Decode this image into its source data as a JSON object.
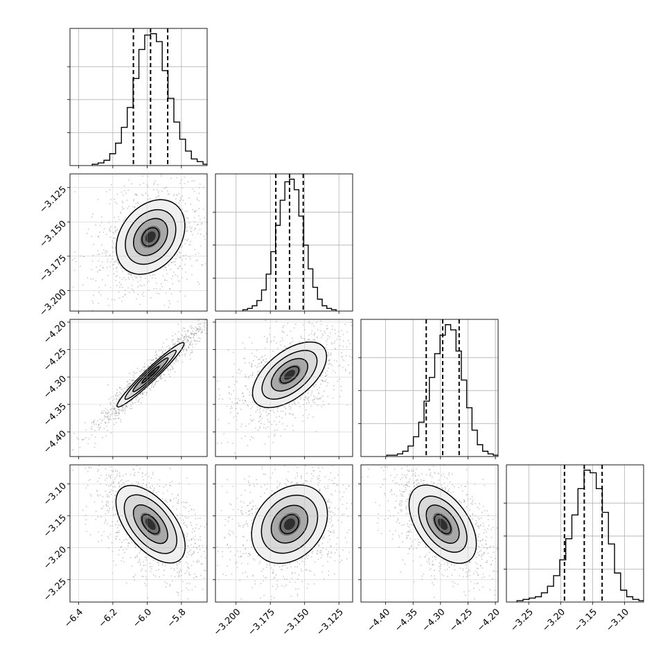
{
  "chart_data": {
    "type": "corner",
    "title": "",
    "parameters": [
      {
        "range": [
          -6.45,
          -5.65
        ],
        "ticks": [
          -6.4,
          -6.2,
          -6.0,
          -5.8
        ],
        "tick_labels": [
          "−6.4",
          "−6.2",
          "−6.0",
          "−5.8"
        ],
        "quantiles": [
          -6.08,
          -5.98,
          -5.88
        ]
      },
      {
        "range": [
          -3.215,
          -3.115
        ],
        "ticks": [
          -3.2,
          -3.175,
          -3.15,
          -3.125
        ],
        "tick_labels": [
          "−3.200",
          "−3.175",
          "−3.150",
          "−3.125"
        ],
        "quantiles": [
          -3.171,
          -3.161,
          -3.151
        ]
      },
      {
        "range": [
          -4.445,
          -4.195
        ],
        "ticks": [
          -4.4,
          -4.35,
          -4.3,
          -4.25,
          -4.2
        ],
        "tick_labels": [
          "−4.40",
          "−4.35",
          "−4.30",
          "−4.25",
          "−4.20"
        ],
        "quantiles": [
          -4.326,
          -4.296,
          -4.266
        ]
      },
      {
        "range": [
          -3.285,
          -3.07
        ],
        "ticks": [
          -3.25,
          -3.2,
          -3.15,
          -3.1
        ],
        "tick_labels": [
          "−3.25",
          "−3.20",
          "−3.15",
          "−3.10"
        ],
        "quantiles": [
          -3.194,
          -3.163,
          -3.135
        ]
      }
    ],
    "histograms": [
      [
        1,
        2,
        4,
        9,
        17,
        29,
        44,
        66,
        88,
        99,
        100,
        94,
        72,
        51,
        33,
        20,
        11,
        5,
        3,
        1
      ],
      [
        1,
        2,
        4,
        8,
        16,
        28,
        45,
        65,
        84,
        98,
        100,
        92,
        72,
        50,
        32,
        18,
        9,
        4,
        2,
        1
      ],
      [
        1,
        1,
        2,
        4,
        8,
        15,
        26,
        42,
        60,
        78,
        92,
        100,
        96,
        80,
        58,
        37,
        20,
        9,
        4,
        2,
        1
      ],
      [
        1,
        2,
        3,
        4,
        7,
        12,
        20,
        32,
        48,
        66,
        86,
        100,
        98,
        86,
        68,
        44,
        22,
        9,
        4,
        2,
        1
      ]
    ],
    "pairs": [
      {
        "x": 0,
        "y": 1,
        "mean": [
          -5.98,
          -3.161
        ],
        "sd": [
          0.1,
          0.0135
        ],
        "rho": 0.28
      },
      {
        "x": 0,
        "y": 2,
        "mean": [
          -5.98,
          -4.296
        ],
        "sd": [
          0.1,
          0.03
        ],
        "rho": 0.965
      },
      {
        "x": 1,
        "y": 2,
        "mean": [
          -3.161,
          -4.296
        ],
        "sd": [
          0.0135,
          0.03
        ],
        "rho": 0.55
      },
      {
        "x": 0,
        "y": 3,
        "mean": [
          -5.98,
          -3.163
        ],
        "sd": [
          0.1,
          0.03
        ],
        "rho": -0.55
      },
      {
        "x": 1,
        "y": 3,
        "mean": [
          -3.161,
          -3.163
        ],
        "sd": [
          0.0135,
          0.03
        ],
        "rho": 0.25
      },
      {
        "x": 2,
        "y": 3,
        "mean": [
          -4.296,
          -3.163
        ],
        "sd": [
          0.03,
          0.03
        ],
        "rho": -0.5
      }
    ],
    "contour_levels_sigma": [
      0.5,
      1.0,
      1.5,
      2.0
    ],
    "grid": true
  }
}
